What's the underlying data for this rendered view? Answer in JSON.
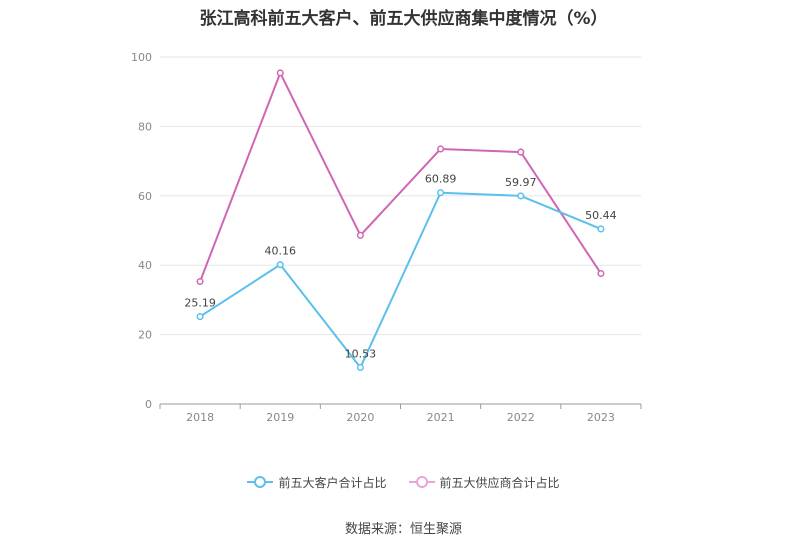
{
  "title": "张江高科前五大客户、前五大供应商集中度情况（%）",
  "source": "数据来源：恒生聚源",
  "chart_data": {
    "type": "line",
    "x": [
      "2018",
      "2019",
      "2020",
      "2021",
      "2022",
      "2023"
    ],
    "ylim": [
      0,
      100
    ],
    "yticks": [
      0,
      20,
      40,
      60,
      80,
      100
    ],
    "grid": true,
    "legend_position": "bottom",
    "series": [
      {
        "name": "前五大客户合计占比",
        "color": "#5bc0eb",
        "values": [
          25.19,
          40.16,
          10.53,
          60.89,
          59.97,
          50.44
        ],
        "labels": [
          "25.19",
          "40.16",
          "10.53",
          "60.89",
          "59.97",
          "50.44"
        ]
      },
      {
        "name": "前五大供应商合计占比",
        "color": "#d066b3",
        "values": [
          35.3,
          95.4,
          48.6,
          73.5,
          72.6,
          37.6
        ]
      }
    ]
  }
}
